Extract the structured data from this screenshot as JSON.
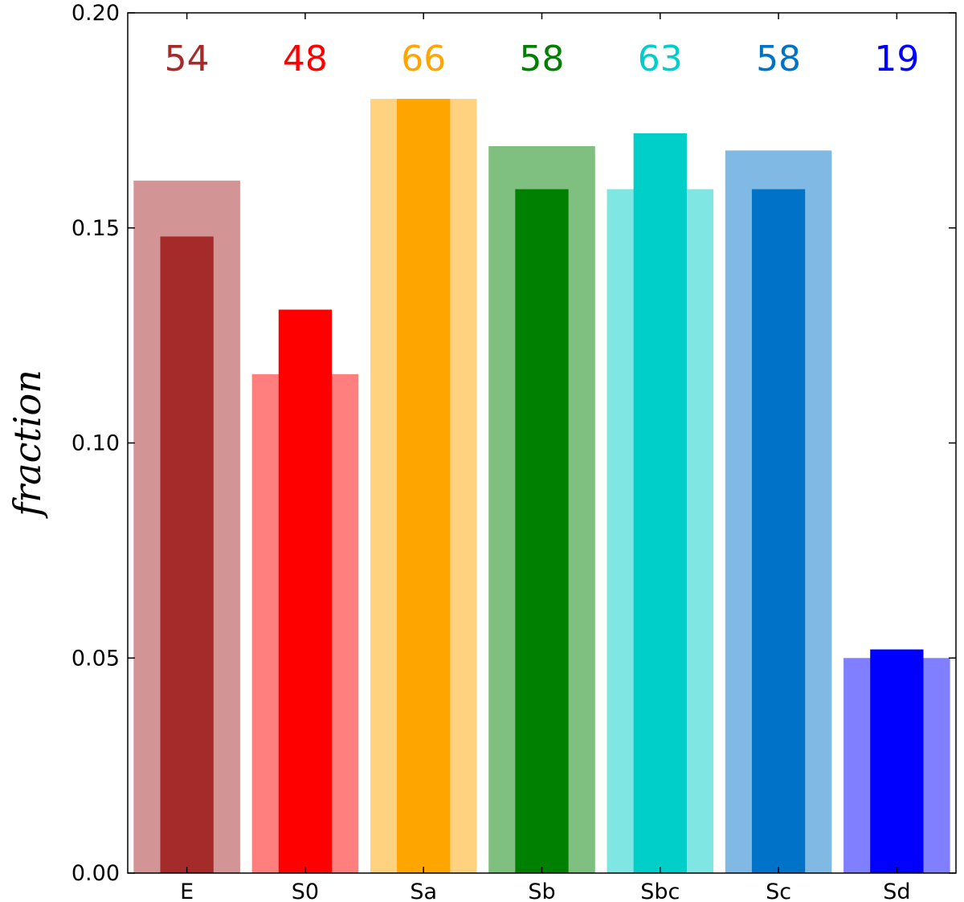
{
  "chart_data": {
    "type": "bar",
    "ylabel": "fraction",
    "ylim": [
      0,
      0.2
    ],
    "yticks": [
      "0.00",
      "0.05",
      "0.10",
      "0.15",
      "0.20"
    ],
    "categories": [
      "E",
      "S0",
      "Sa",
      "Sb",
      "Sbc",
      "Sc",
      "Sd"
    ],
    "counts": [
      "54",
      "48",
      "66",
      "58",
      "63",
      "58",
      "19"
    ],
    "series": [
      {
        "values": [
          0.161,
          0.116,
          0.18,
          0.169,
          0.159,
          0.168,
          0.05
        ]
      },
      {
        "values": [
          0.148,
          0.131,
          0.18,
          0.159,
          0.172,
          0.159,
          0.052
        ]
      }
    ],
    "colors": [
      "#a52a2a",
      "#ff0000",
      "#ffa500",
      "#008000",
      "#00cec9",
      "#0073c9",
      "#0000ff"
    ],
    "grid": false
  }
}
